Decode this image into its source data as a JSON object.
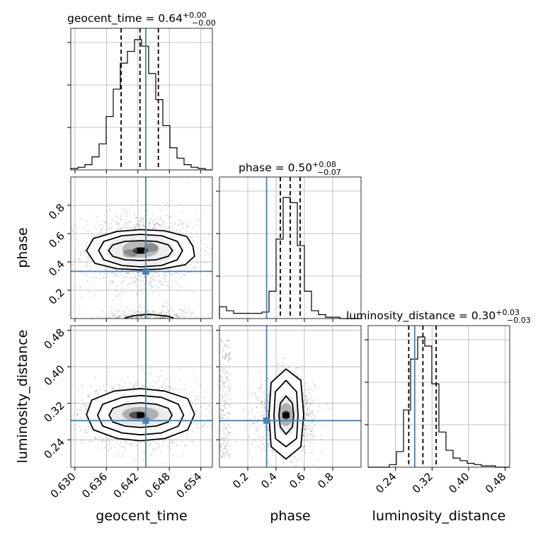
{
  "chart_data": {
    "type": "corner",
    "parameters": [
      "geocent_time",
      "phase",
      "luminosity_distance"
    ],
    "truth_color": "#4682b4",
    "titles": [
      {
        "param": "geocent_time",
        "text": "geocent_time = 0.64",
        "plus": "+0.00",
        "minus": "−0.00"
      },
      {
        "param": "phase",
        "text": "phase = 0.50",
        "plus": "+0.08",
        "minus": "−0.07"
      },
      {
        "param": "luminosity_distance",
        "text": "luminosity_distance = 0.30",
        "plus": "+0.03",
        "minus": "−0.03"
      }
    ],
    "axes": {
      "geocent_time": {
        "range": [
          0.6292,
          0.6562
        ],
        "ticks": [
          0.63,
          0.636,
          0.642,
          0.648,
          0.654
        ],
        "tick_labels": [
          "0.630",
          "0.636",
          "0.642",
          "0.648",
          "0.654"
        ],
        "truth": 0.6435
      },
      "phase": {
        "range": [
          0.0,
          1.0
        ],
        "ticks": [
          0.2,
          0.4,
          0.6,
          0.8
        ],
        "tick_labels": [
          "0.2",
          "0.4",
          "0.6",
          "0.8"
        ],
        "truth": 0.333
      },
      "luminosity_distance": {
        "range": [
          0.18,
          0.49
        ],
        "ticks": [
          0.24,
          0.32,
          0.4,
          0.48
        ],
        "tick_labels": [
          "0.24",
          "0.32",
          "0.40",
          "0.48"
        ],
        "truth": 0.282
      }
    },
    "quantiles": {
      "geocent_time": [
        0.6388,
        0.6424,
        0.6459
      ],
      "phase": [
        0.43,
        0.5,
        0.57
      ],
      "luminosity_distance": [
        0.269,
        0.3,
        0.329
      ]
    },
    "histograms": {
      "geocent_time": {
        "edges": [
          0.6292,
          0.63055,
          0.6319,
          0.63325,
          0.6346,
          0.63595,
          0.6373,
          0.63865,
          0.64,
          0.64135,
          0.6427,
          0.64405,
          0.6454,
          0.64675,
          0.6481,
          0.64945,
          0.6508,
          0.65215,
          0.6535,
          0.65485,
          0.6562
        ],
        "counts": [
          0.01,
          0.02,
          0.04,
          0.1,
          0.2,
          0.41,
          0.62,
          0.82,
          0.91,
          1.0,
          0.95,
          0.74,
          0.54,
          0.34,
          0.17,
          0.09,
          0.04,
          0.02,
          0.01,
          0.0
        ]
      },
      "phase": {
        "edges": [
          0.0,
          0.05,
          0.1,
          0.15,
          0.2,
          0.25,
          0.3,
          0.35,
          0.4,
          0.45,
          0.5,
          0.55,
          0.6,
          0.65,
          0.7,
          0.75,
          0.8,
          0.85,
          0.9,
          0.95,
          1.0
        ],
        "counts": [
          0.09,
          0.06,
          0.04,
          0.04,
          0.04,
          0.04,
          0.05,
          0.21,
          0.61,
          0.93,
          0.89,
          0.56,
          0.21,
          0.06,
          0.03,
          0.01,
          0.01,
          0.0,
          0.0,
          0.0
        ]
      },
      "luminosity_distance": {
        "edges": [
          0.18,
          0.1955,
          0.211,
          0.2265,
          0.242,
          0.2575,
          0.273,
          0.2885,
          0.304,
          0.3195,
          0.335,
          0.3505,
          0.366,
          0.3815,
          0.397,
          0.4125,
          0.428,
          0.4435,
          0.459,
          0.4745,
          0.49
        ],
        "counts": [
          0.0,
          0.0,
          0.0,
          0.02,
          0.12,
          0.44,
          0.83,
          1.0,
          0.93,
          0.64,
          0.27,
          0.13,
          0.07,
          0.05,
          0.03,
          0.02,
          0.01,
          0.01,
          0.0,
          0.0
        ]
      }
    },
    "pairs": [
      {
        "x": "geocent_time",
        "y": "phase",
        "mode": [
          0.6425,
          0.48
        ],
        "contours": [
          [
            [
              0.6364,
              0.48
            ],
            [
              0.6372,
              0.52
            ],
            [
              0.6395,
              0.545
            ],
            [
              0.6425,
              0.55
            ],
            [
              0.6455,
              0.545
            ],
            [
              0.6478,
              0.52
            ],
            [
              0.6486,
              0.48
            ],
            [
              0.6478,
              0.44
            ],
            [
              0.6455,
              0.415
            ],
            [
              0.6425,
              0.41
            ],
            [
              0.6395,
              0.415
            ],
            [
              0.6372,
              0.44
            ]
          ],
          [
            [
              0.6345,
              0.48
            ],
            [
              0.6355,
              0.545
            ],
            [
              0.639,
              0.585
            ],
            [
              0.6425,
              0.595
            ],
            [
              0.6465,
              0.585
            ],
            [
              0.6495,
              0.545
            ],
            [
              0.6505,
              0.48
            ],
            [
              0.6495,
              0.415
            ],
            [
              0.6465,
              0.375
            ],
            [
              0.6425,
              0.365
            ],
            [
              0.639,
              0.375
            ],
            [
              0.6355,
              0.415
            ]
          ],
          [
            [
              0.6322,
              0.48
            ],
            [
              0.6335,
              0.565
            ],
            [
              0.638,
              0.615
            ],
            [
              0.6425,
              0.628
            ],
            [
              0.647,
              0.62
            ],
            [
              0.6513,
              0.58
            ],
            [
              0.6525,
              0.51
            ],
            [
              0.6528,
              0.44
            ],
            [
              0.651,
              0.38
            ],
            [
              0.6465,
              0.35
            ],
            [
              0.6425,
              0.344
            ],
            [
              0.638,
              0.352
            ],
            [
              0.6338,
              0.39
            ]
          ],
          [
            [
              0.6395,
              0.004
            ],
            [
              0.6415,
              0.022
            ],
            [
              0.6442,
              0.03
            ],
            [
              0.6475,
              0.018
            ],
            [
              0.6488,
              0.004
            ]
          ]
        ],
        "density": [
          [
            0.6425,
            0.48,
            0.0015,
            0.025,
            1.0
          ],
          [
            0.6445,
            0.5,
            0.0014,
            0.03,
            0.45
          ],
          [
            0.6405,
            0.46,
            0.0014,
            0.03,
            0.45
          ],
          [
            0.6425,
            0.49,
            0.0035,
            0.06,
            0.4
          ],
          [
            0.6425,
            0.48,
            0.0065,
            0.11,
            0.12
          ]
        ],
        "scatter_center": [
          0.6425,
          0.48
        ],
        "scatter_spread": [
          0.0048,
          0.12
        ]
      },
      {
        "x": "geocent_time",
        "y": "luminosity_distance",
        "mode": [
          0.6425,
          0.294
        ],
        "contours": [
          [
            [
              0.6365,
              0.294
            ],
            [
              0.6372,
              0.309
            ],
            [
              0.6395,
              0.318
            ],
            [
              0.6425,
              0.321
            ],
            [
              0.6455,
              0.318
            ],
            [
              0.6478,
              0.309
            ],
            [
              0.6485,
              0.294
            ],
            [
              0.6478,
              0.279
            ],
            [
              0.6455,
              0.27
            ],
            [
              0.6425,
              0.267
            ],
            [
              0.6395,
              0.27
            ],
            [
              0.6372,
              0.279
            ]
          ],
          [
            [
              0.6343,
              0.294
            ],
            [
              0.6353,
              0.318
            ],
            [
              0.639,
              0.333
            ],
            [
              0.6425,
              0.337
            ],
            [
              0.6465,
              0.333
            ],
            [
              0.6497,
              0.318
            ],
            [
              0.6507,
              0.294
            ],
            [
              0.6497,
              0.27
            ],
            [
              0.6465,
              0.255
            ],
            [
              0.6425,
              0.251
            ],
            [
              0.639,
              0.255
            ],
            [
              0.6353,
              0.27
            ]
          ],
          [
            [
              0.6322,
              0.295
            ],
            [
              0.6332,
              0.327
            ],
            [
              0.6375,
              0.347
            ],
            [
              0.6425,
              0.352
            ],
            [
              0.647,
              0.347
            ],
            [
              0.6515,
              0.33
            ],
            [
              0.6528,
              0.296
            ],
            [
              0.6515,
              0.262
            ],
            [
              0.6472,
              0.243
            ],
            [
              0.6425,
              0.238
            ],
            [
              0.638,
              0.243
            ],
            [
              0.6335,
              0.262
            ]
          ]
        ],
        "density": [
          [
            0.642,
            0.294,
            0.0017,
            0.008,
            1.0
          ],
          [
            0.6425,
            0.296,
            0.0035,
            0.016,
            0.45
          ],
          [
            0.6425,
            0.295,
            0.0062,
            0.026,
            0.14
          ]
        ],
        "scatter_center": [
          0.6425,
          0.295
        ],
        "scatter_spread": [
          0.0048,
          0.03
        ]
      },
      {
        "x": "phase",
        "y": "luminosity_distance",
        "mode": [
          0.47,
          0.294
        ],
        "contours": [
          [
            [
              0.42,
              0.294
            ],
            [
              0.43,
              0.32
            ],
            [
              0.47,
              0.336
            ],
            [
              0.515,
              0.32
            ],
            [
              0.525,
              0.294
            ],
            [
              0.515,
              0.268
            ],
            [
              0.47,
              0.252
            ],
            [
              0.43,
              0.268
            ]
          ],
          [
            [
              0.385,
              0.294
            ],
            [
              0.395,
              0.345
            ],
            [
              0.47,
              0.37
            ],
            [
              0.545,
              0.345
            ],
            [
              0.555,
              0.294
            ],
            [
              0.545,
              0.243
            ],
            [
              0.47,
              0.225
            ],
            [
              0.395,
              0.243
            ]
          ],
          [
            [
              0.35,
              0.294
            ],
            [
              0.365,
              0.365
            ],
            [
              0.47,
              0.395
            ],
            [
              0.575,
              0.37
            ],
            [
              0.595,
              0.294
            ],
            [
              0.575,
              0.225
            ],
            [
              0.47,
              0.198
            ],
            [
              0.365,
              0.225
            ]
          ]
        ],
        "density": [
          [
            0.47,
            0.294,
            0.025,
            0.01,
            1.0
          ],
          [
            0.47,
            0.295,
            0.05,
            0.025,
            0.45
          ],
          [
            0.47,
            0.295,
            0.08,
            0.045,
            0.14
          ]
        ],
        "scatter_center": [
          0.47,
          0.295
        ],
        "scatter_spread": [
          0.085,
          0.035
        ],
        "extra_scatter": {
          "x_range": [
            0.0,
            0.08
          ],
          "y_range": [
            0.2,
            0.46
          ],
          "n": 220
        }
      }
    ]
  }
}
